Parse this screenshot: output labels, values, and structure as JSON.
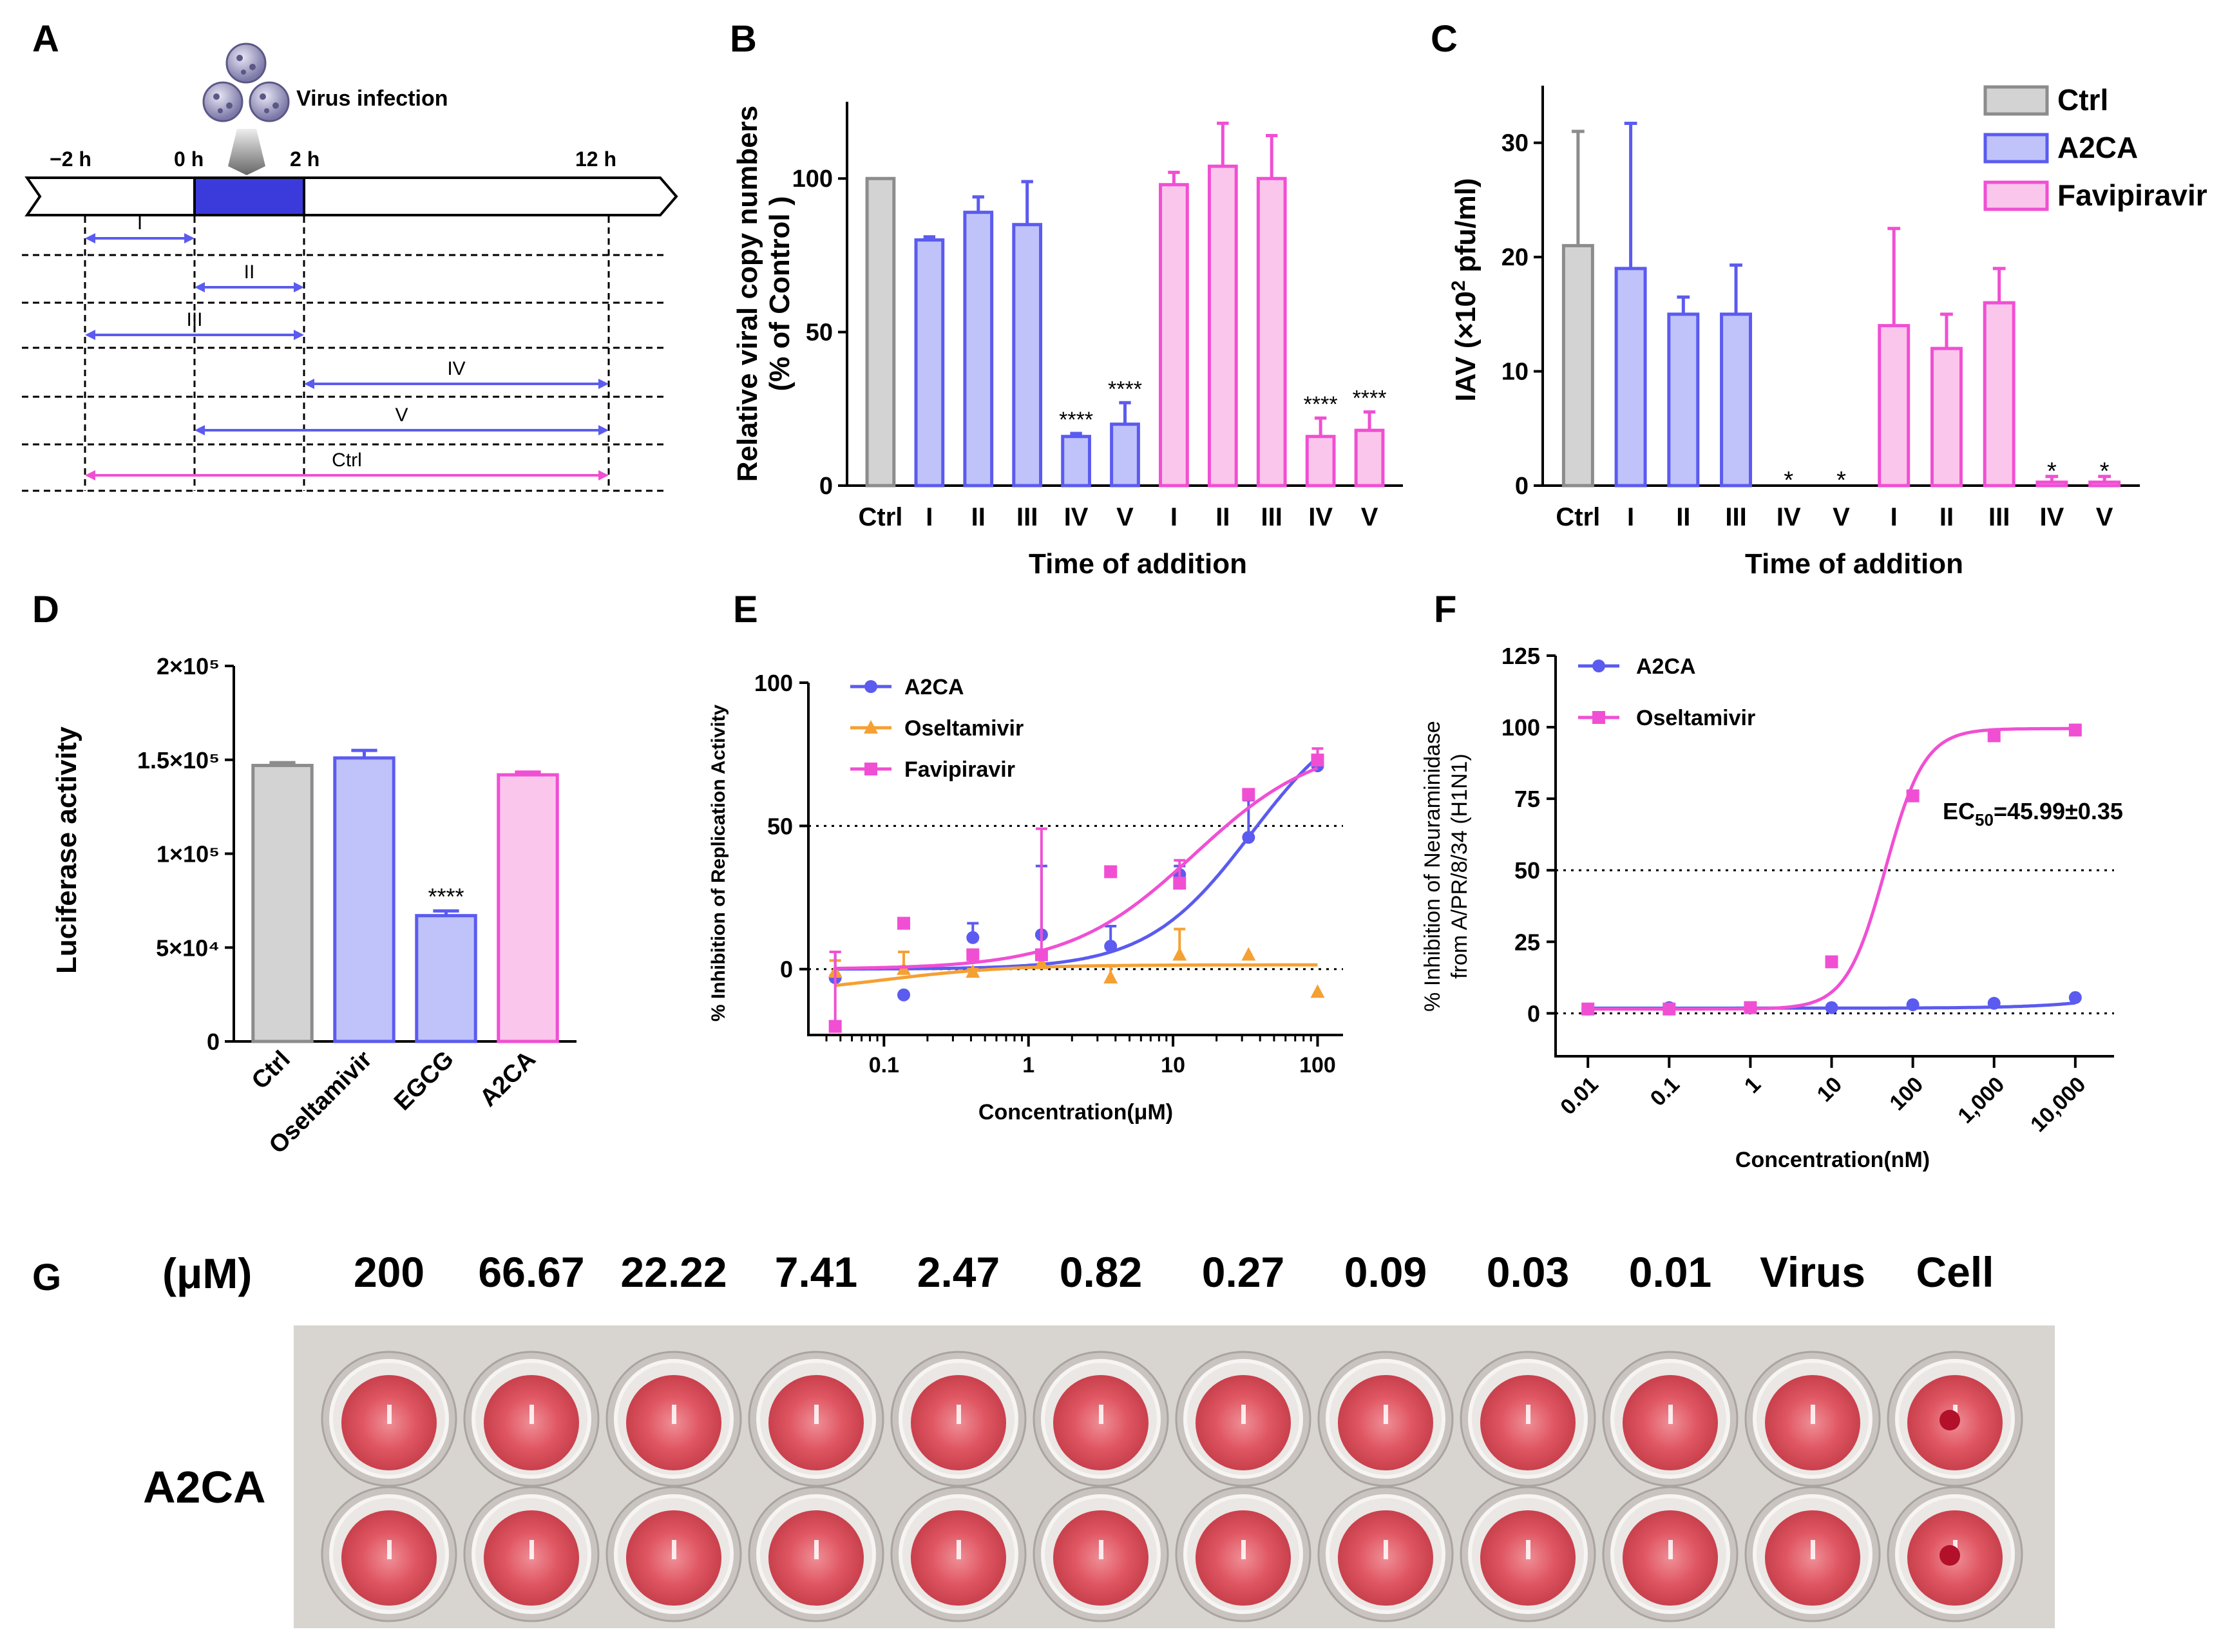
{
  "panel_labels": [
    "A",
    "B",
    "C",
    "D",
    "E",
    "F",
    "G"
  ],
  "colors": {
    "ctrl_fill": "#d3d3d3",
    "ctrl_stroke": "#8c8c8c",
    "blue_fill": "#bfc3f9",
    "blue_stroke": "#5b5bef",
    "pink_fill": "#fbc6ec",
    "pink_stroke": "#f04fd3",
    "orange": "#f5a033",
    "axis": "#000000"
  },
  "panel_a": {
    "infection_label": "Virus infection",
    "time_labels": [
      "−2 h",
      "0 h",
      "2 h",
      "12 h"
    ],
    "intervals": [
      {
        "label": "I",
        "from": -2,
        "to": 0,
        "color": "blue"
      },
      {
        "label": "II",
        "from": 0,
        "to": 2,
        "color": "blue"
      },
      {
        "label": "III",
        "from": -2,
        "to": 2,
        "color": "blue"
      },
      {
        "label": "IV",
        "from": 2,
        "to": 12,
        "color": "blue"
      },
      {
        "label": "V",
        "from": 0,
        "to": 12,
        "color": "blue"
      },
      {
        "label": "Ctrl",
        "from": -2,
        "to": 12,
        "color": "pink"
      }
    ]
  },
  "legend_bc": [
    "Ctrl",
    "A2CA",
    "Favipiravir"
  ],
  "chart_data": [
    {
      "id": "B",
      "type": "bar",
      "ylabel_line1": "Relative viral copy numbers",
      "ylabel_line2": "(% of Control )",
      "xlabel": "Time of addition",
      "ylim": [
        0,
        125
      ],
      "yticks": [
        0,
        50,
        100
      ],
      "categories": [
        "Ctrl",
        "I",
        "II",
        "III",
        "IV",
        "V",
        "I",
        "II",
        "III",
        "IV",
        "V"
      ],
      "groups": [
        "ctrl",
        "blue",
        "blue",
        "blue",
        "blue",
        "blue",
        "pink",
        "pink",
        "pink",
        "pink",
        "pink"
      ],
      "values": [
        100,
        80,
        89,
        85,
        16,
        20,
        98,
        104,
        100,
        16,
        18
      ],
      "errors": [
        0,
        1,
        5,
        14,
        1,
        7,
        4,
        14,
        14,
        6,
        6
      ],
      "significance": [
        "",
        "",
        "",
        "",
        "****",
        "****",
        "",
        "",
        "",
        "****",
        "****"
      ]
    },
    {
      "id": "C",
      "type": "bar",
      "ylabel": "IAV (×10",
      "ylabel_sup": "2",
      "ylabel_tail": " pfu/ml)",
      "xlabel": "Time of addition",
      "ylim": [
        0,
        35
      ],
      "yticks": [
        0,
        10,
        20,
        30
      ],
      "categories": [
        "Ctrl",
        "I",
        "II",
        "III",
        "IV",
        "V",
        "I",
        "II",
        "III",
        "IV",
        "V"
      ],
      "groups": [
        "ctrl",
        "blue",
        "blue",
        "blue",
        "blue",
        "blue",
        "pink",
        "pink",
        "pink",
        "pink",
        "pink"
      ],
      "values": [
        21,
        19,
        15,
        15,
        0,
        0,
        14,
        12,
        16,
        0.3,
        0.3
      ],
      "errors": [
        10,
        12.7,
        1.5,
        4.3,
        0,
        0,
        8.5,
        3,
        3,
        0.5,
        0.5
      ],
      "significance": [
        "",
        "",
        "",
        "",
        "*",
        "*",
        "",
        "",
        "",
        "*",
        "*"
      ]
    },
    {
      "id": "D",
      "type": "bar",
      "ylabel": "Luciferase activity",
      "ylim": [
        0,
        200000
      ],
      "yticks": [
        0,
        50000,
        100000,
        150000,
        200000
      ],
      "ytick_labels": [
        "0",
        "5×10⁴",
        "1×10⁵",
        "1.5×10⁵",
        "2×10⁵"
      ],
      "categories": [
        "Ctrl",
        "Oseltamivir",
        "EGCG",
        "A2CA"
      ],
      "groups": [
        "ctrl",
        "blue",
        "blue",
        "pink"
      ],
      "values": [
        147000,
        151000,
        67000,
        142000
      ],
      "errors": [
        1500,
        4000,
        2500,
        1500
      ],
      "significance": [
        "",
        "",
        "****",
        ""
      ]
    },
    {
      "id": "E",
      "type": "scatter",
      "xscale": "log",
      "ylabel": "% Inhibition of Replication Activity",
      "xlabel": "Concentration(μM)",
      "xlim": [
        0.03,
        150
      ],
      "ylim": [
        -23,
        100
      ],
      "xticks": [
        0.1,
        1,
        10,
        100
      ],
      "xtick_labels": [
        "0.1",
        "1",
        "10",
        "100"
      ],
      "yticks": [
        0,
        50,
        100
      ],
      "reference_lines": [
        0,
        50
      ],
      "series": [
        {
          "name": "A2CA",
          "color": "blue",
          "marker": "circle",
          "x": [
            0.046,
            0.137,
            0.412,
            1.23,
            3.7,
            11.1,
            33.3,
            100
          ],
          "y": [
            -3,
            -9,
            11,
            12,
            8,
            33,
            46,
            71
          ],
          "err": [
            9,
            0,
            5,
            24,
            7,
            3,
            13,
            2
          ],
          "fit": {
            "bottom": 0,
            "top": 95,
            "ec50": 35,
            "hill": 1.2
          }
        },
        {
          "name": "Oseltamivir",
          "color": "orange",
          "marker": "triangle",
          "x": [
            0.046,
            0.137,
            0.412,
            1.23,
            3.7,
            11.1,
            33.3,
            100
          ],
          "y": [
            -1,
            0,
            -1,
            2,
            -3,
            5,
            5,
            -8
          ],
          "err": [
            4,
            6,
            1,
            2,
            4,
            9,
            0,
            0
          ],
          "fit": {
            "bottom": -9,
            "top": 1.5,
            "ec50": 0.1,
            "hill": 1
          }
        },
        {
          "name": "Favipiravir",
          "color": "pink",
          "marker": "square",
          "x": [
            0.046,
            0.137,
            0.412,
            1.23,
            3.7,
            11.1,
            33.3,
            100
          ],
          "y": [
            -20,
            16,
            5,
            5,
            34,
            30,
            61,
            73
          ],
          "err": [
            26,
            0,
            0,
            44,
            0,
            8,
            0,
            4
          ],
          "fit": {
            "bottom": 0,
            "top": 80,
            "ec50": 14,
            "hill": 1
          }
        }
      ]
    },
    {
      "id": "F",
      "type": "scatter",
      "xscale": "log",
      "ylabel_line1": "% Inhibition of Neuraminidase",
      "ylabel_line2": "from A/PR/8/34 (H1N1)",
      "xlabel": "Concentration(nM)",
      "xlim": [
        0.004,
        30000
      ],
      "ylim": [
        -15,
        125
      ],
      "xticks": [
        0.01,
        0.1,
        1,
        10,
        100,
        1000,
        10000
      ],
      "xtick_labels": [
        "0.01",
        "0.1",
        "1",
        "10",
        "100",
        "1,000",
        "10,000"
      ],
      "yticks": [
        0,
        25,
        50,
        75,
        100,
        125
      ],
      "reference_lines": [
        0,
        50
      ],
      "annotation": "EC",
      "annotation_sub": "50",
      "annotation_tail": "=45.99±0.35",
      "series": [
        {
          "name": "A2CA",
          "color": "blue",
          "marker": "circle",
          "x": [
            0.01,
            0.1,
            1,
            10,
            100,
            1000,
            10000
          ],
          "y": [
            1.5,
            2,
            2,
            2,
            3,
            3.5,
            5.5
          ],
          "fit": {
            "bottom": 1.8,
            "top": 50,
            "ec50": 1000000,
            "hill": 0.7
          }
        },
        {
          "name": "Oseltamivir",
          "color": "pink",
          "marker": "square",
          "x": [
            0.01,
            0.1,
            1,
            10,
            100,
            1000,
            10000
          ],
          "y": [
            1.5,
            1.5,
            2,
            18,
            76,
            97,
            99
          ],
          "fit": {
            "bottom": 1.5,
            "top": 99.5,
            "ec50": 45.99,
            "hill": 1.8
          }
        }
      ]
    }
  ],
  "panel_g": {
    "unit_label": "(μM)",
    "column_labels": [
      "200",
      "66.67",
      "22.22",
      "7.41",
      "2.47",
      "0.82",
      "0.27",
      "0.09",
      "0.03",
      "0.01",
      "Virus",
      "Cell"
    ],
    "row_label": "A2CA",
    "plate_colors": {
      "background": "#dbd7d3",
      "medium": "#e05a63",
      "medium_light": "#ee9aa0",
      "pellet": "#b3102a"
    }
  }
}
